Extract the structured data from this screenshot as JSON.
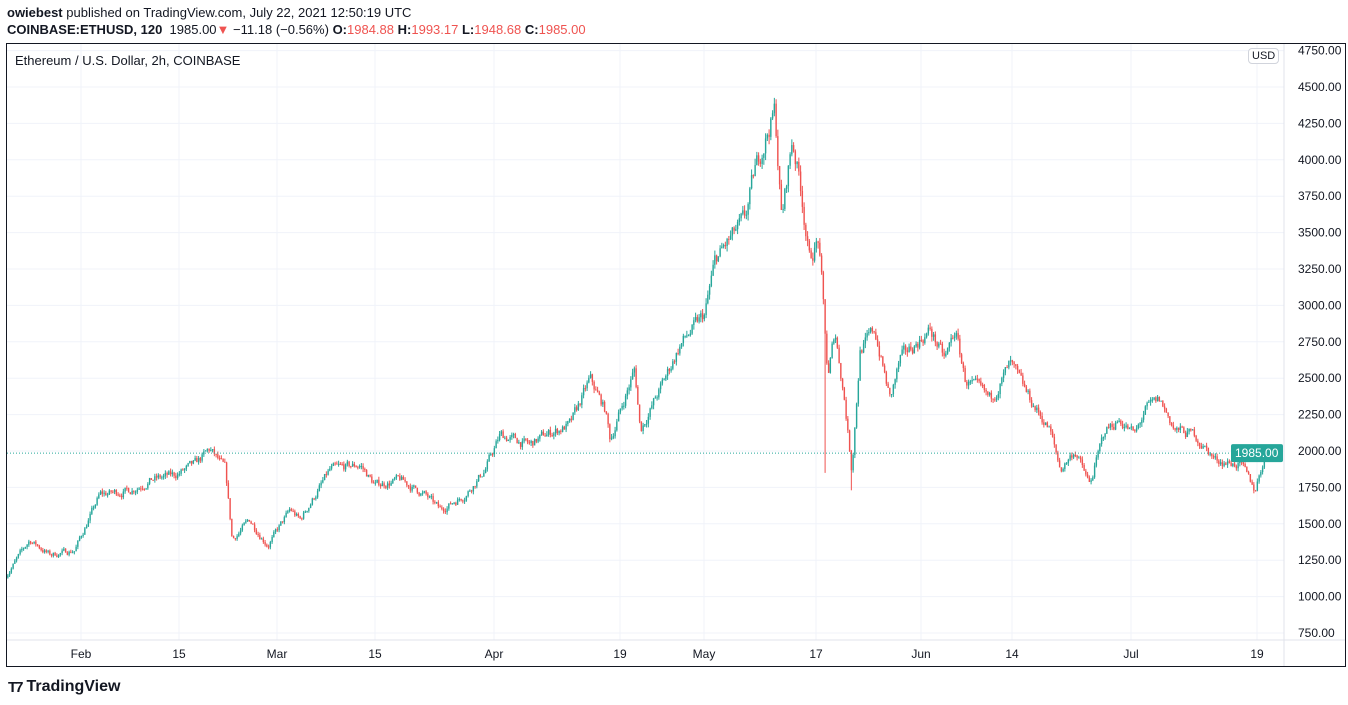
{
  "header": {
    "author": "owiebest",
    "published": "published on TradingView.com, July 22, 2021 12:50:19 UTC",
    "symbol": "COINBASE:ETHUSD, 120",
    "last": "1985.00",
    "change": "−11.18 (−0.56%)",
    "o_label": "O:",
    "o": "1984.88",
    "h_label": "H:",
    "h": "1993.17",
    "l_label": "L:",
    "l": "1948.68",
    "c_label": "C:",
    "c": "1985.00"
  },
  "chart_title": "Ethereum / U.S. Dollar, 2h, COINBASE",
  "currency_badge": "USD",
  "brand": "TradingView",
  "colors": {
    "up": "#26a69a",
    "down": "#ef5350",
    "grid": "#f0f3fa"
  },
  "chart_data": {
    "type": "candlestick",
    "title": "Ethereum / U.S. Dollar, 2h, COINBASE",
    "x_unit": "day of year 2021",
    "ylim": [
      750,
      4750
    ],
    "yticks": [
      "750.00",
      "1000.00",
      "1250.00",
      "1500.00",
      "1750.00",
      "2000.00",
      "2250.00",
      "2500.00",
      "2750.00",
      "3000.00",
      "3250.00",
      "3500.00",
      "3750.00",
      "4000.00",
      "4250.00",
      "4500.00",
      "4750.00"
    ],
    "xticks": [
      {
        "t": 32,
        "label": "Feb"
      },
      {
        "t": 46,
        "label": "15"
      },
      {
        "t": 60,
        "label": "Mar"
      },
      {
        "t": 74,
        "label": "15"
      },
      {
        "t": 91,
        "label": "Apr"
      },
      {
        "t": 109,
        "label": "19"
      },
      {
        "t": 121,
        "label": "May"
      },
      {
        "t": 137,
        "label": "17"
      },
      {
        "t": 152,
        "label": "Jun"
      },
      {
        "t": 165,
        "label": "14"
      },
      {
        "t": 182,
        "label": "Jul"
      },
      {
        "t": 200,
        "label": "19"
      }
    ],
    "last_price": "1985.00",
    "price_path": [
      [
        21.3,
        1148
      ],
      [
        24.7,
        1389
      ],
      [
        27.6,
        1285
      ],
      [
        31.1,
        1320
      ],
      [
        34.7,
        1700
      ],
      [
        39,
        1730
      ],
      [
        41.9,
        1800
      ],
      [
        45.4,
        1835
      ],
      [
        48.3,
        1905
      ],
      [
        50.4,
        2010
      ],
      [
        52.6,
        1870
      ],
      [
        53.6,
        1390
      ],
      [
        56.1,
        1525
      ],
      [
        58.7,
        1355
      ],
      [
        61.9,
        1595
      ],
      [
        63.3,
        1525
      ],
      [
        67.6,
        1870
      ],
      [
        71.9,
        1905
      ],
      [
        74,
        1765
      ],
      [
        77.6,
        1800
      ],
      [
        81.1,
        1700
      ],
      [
        83.3,
        1595
      ],
      [
        86.9,
        1700
      ],
      [
        89.7,
        1870
      ],
      [
        91.9,
        2110
      ],
      [
        96.1,
        2040
      ],
      [
        98.3,
        2110
      ],
      [
        101.9,
        2180
      ],
      [
        104.7,
        2490
      ],
      [
        106.9,
        2280
      ],
      [
        107.6,
        2075
      ],
      [
        111.1,
        2560
      ],
      [
        111.9,
        2145
      ],
      [
        114.7,
        2420
      ],
      [
        117.6,
        2730
      ],
      [
        121.1,
        2935
      ],
      [
        122.6,
        3310
      ],
      [
        124.7,
        3450
      ],
      [
        126.9,
        3590
      ],
      [
        128.3,
        3930
      ],
      [
        129.7,
        4140
      ],
      [
        131.1,
        4340
      ],
      [
        132.1,
        3590
      ],
      [
        133.6,
        4140
      ],
      [
        134.7,
        3860
      ],
      [
        136.1,
        3310
      ],
      [
        137.3,
        3450
      ],
      [
        137.9,
        3105
      ],
      [
        138.7,
        2490
      ],
      [
        139.7,
        2830
      ],
      [
        141.1,
        2350
      ],
      [
        142.1,
        1870
      ],
      [
        143.3,
        2690
      ],
      [
        145.4,
        2830
      ],
      [
        147.6,
        2350
      ],
      [
        149,
        2625
      ],
      [
        151.1,
        2730
      ],
      [
        153.3,
        2830
      ],
      [
        155.4,
        2625
      ],
      [
        156.9,
        2830
      ],
      [
        158.3,
        2490
      ],
      [
        161.9,
        2350
      ],
      [
        164.7,
        2590
      ],
      [
        167.6,
        2350
      ],
      [
        170.4,
        2145
      ],
      [
        171.9,
        1870
      ],
      [
        174,
        2005
      ],
      [
        176.1,
        1765
      ],
      [
        178.3,
        2145
      ],
      [
        180.4,
        2215
      ],
      [
        182.6,
        2110
      ],
      [
        184,
        2280
      ],
      [
        186.1,
        2350
      ],
      [
        188.3,
        2145
      ],
      [
        191.1,
        2110
      ],
      [
        194,
        1940
      ],
      [
        197.6,
        1905
      ],
      [
        199.7,
        1730
      ],
      [
        201.1,
        1970
      ],
      [
        202.1,
        1985
      ]
    ],
    "notable_lows": [
      [
        138.4,
        1850
      ],
      [
        142.1,
        1730
      ]
    ]
  }
}
